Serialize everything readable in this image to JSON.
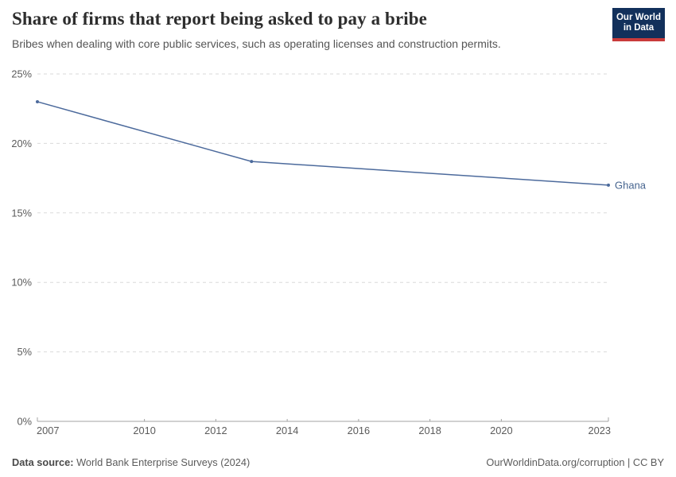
{
  "header": {
    "title": "Share of firms that report being asked to pay a bribe",
    "subtitle": "Bribes when dealing with core public services, such as operating licenses and construction permits.",
    "logo_line1": "Our World",
    "logo_line2": "in Data"
  },
  "chart_data": {
    "type": "line",
    "title": "Share of firms that report being asked to pay a bribe",
    "xlabel": "",
    "ylabel": "",
    "x_range": [
      2007,
      2023
    ],
    "ylim": [
      0,
      25
    ],
    "x_ticks": [
      2007,
      2010,
      2012,
      2014,
      2016,
      2018,
      2020,
      2023
    ],
    "y_ticks": [
      0,
      5,
      10,
      15,
      20,
      25
    ],
    "y_tick_labels": [
      "0%",
      "5%",
      "10%",
      "15%",
      "20%",
      "25%"
    ],
    "grid": "horizontal dashed",
    "legend_position": "end-of-line label",
    "series": [
      {
        "name": "Ghana",
        "color": "#4C6A9C",
        "points": [
          [
            2007,
            23
          ],
          [
            2013,
            18.7
          ],
          [
            2023,
            17
          ]
        ]
      }
    ]
  },
  "footer": {
    "source_label": "Data source:",
    "source_text": " World Bank Enterprise Surveys (2024)",
    "right_text": "OurWorldinData.org/corruption | CC BY"
  },
  "colors": {
    "line": "#4C6A9C",
    "end_label": "#46648f",
    "grid": "#dadada",
    "axis": "#a3a3a3",
    "tick_text": "#5b5b5b",
    "logo_bg": "#12305b",
    "logo_red": "#c93b3b"
  }
}
